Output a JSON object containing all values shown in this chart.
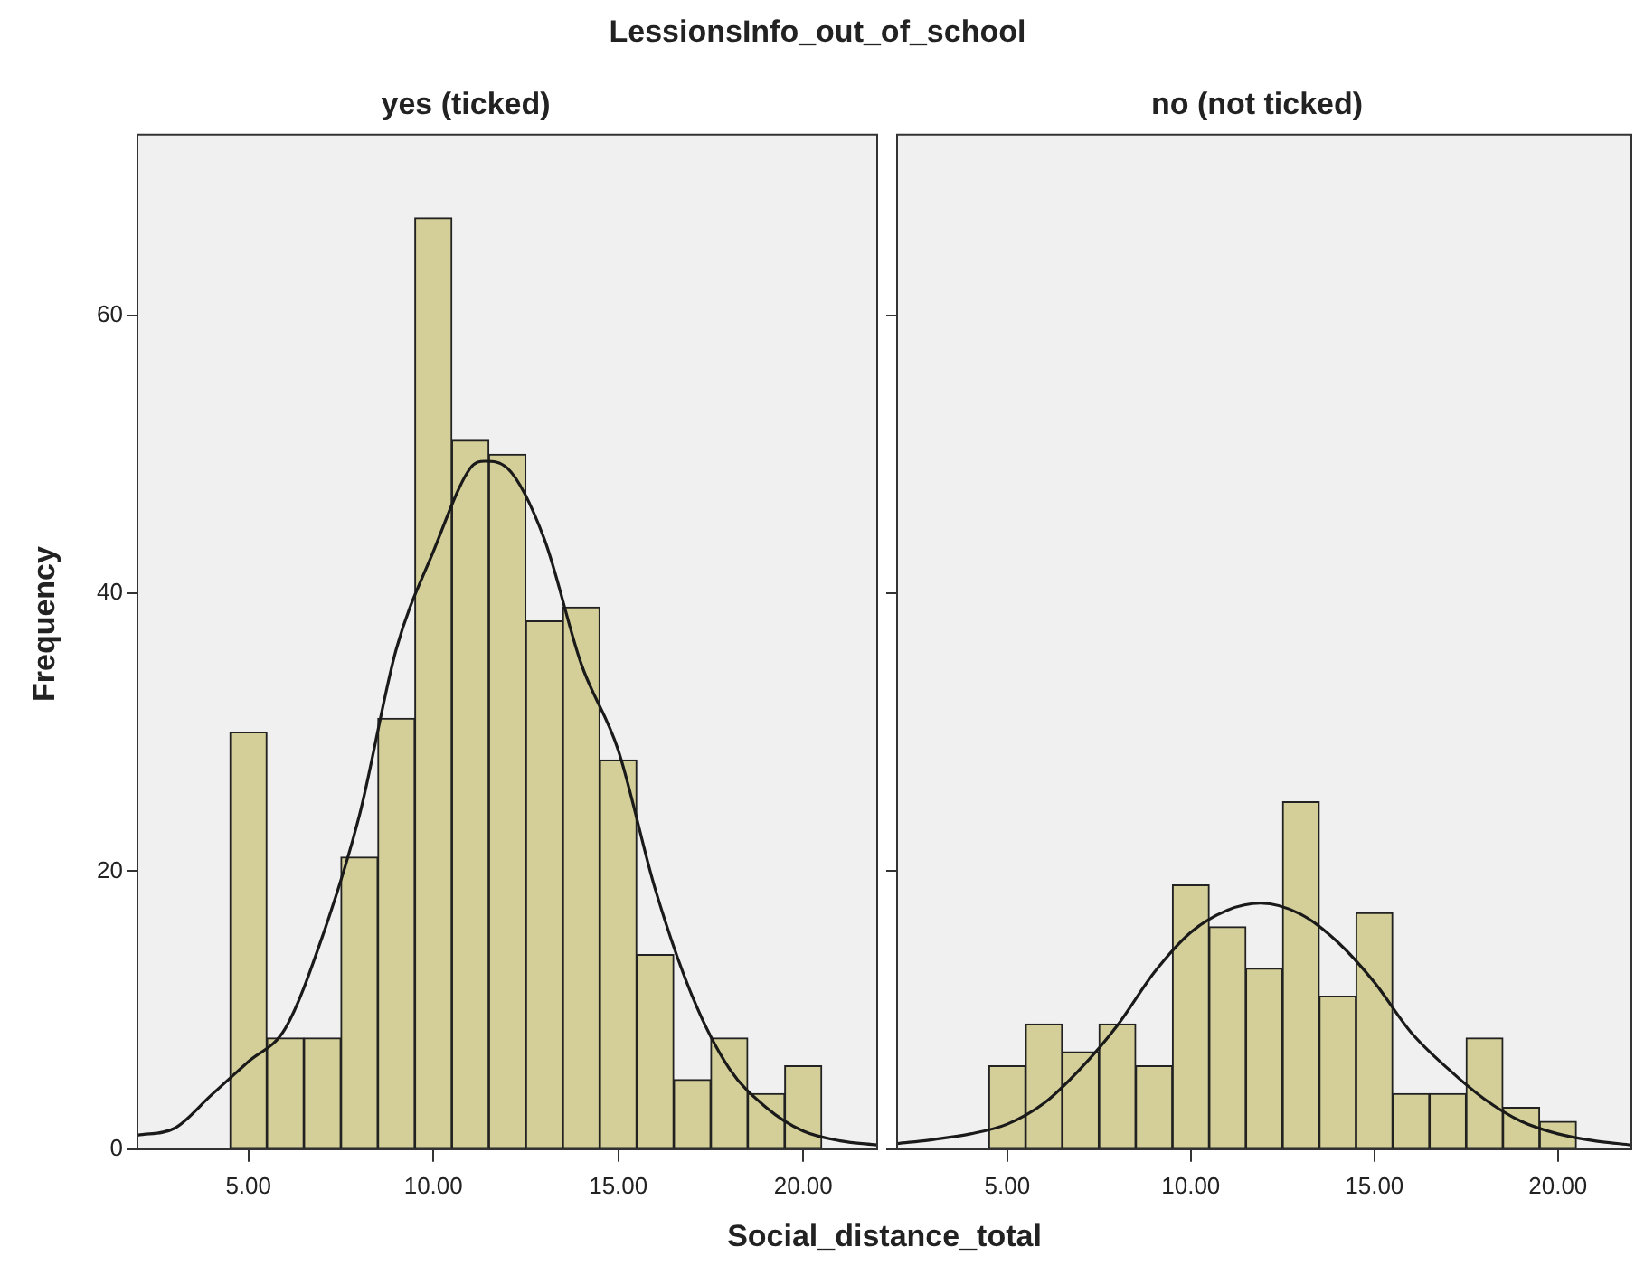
{
  "chart_data": [
    {
      "type": "histogram",
      "title": "LessionsInfo_out_of_school",
      "subtitle": "yes (ticked)",
      "xlabel": "Social_distance_total",
      "ylabel": "Frequency",
      "bins": [
        4.5,
        5.5,
        6.5,
        7.5,
        8.5,
        9.5,
        10.5,
        11.5,
        12.5,
        13.5,
        14.5,
        15.5,
        16.5,
        17.5,
        18.5,
        19.5,
        20.5
      ],
      "series": [
        {
          "color": "#d4cf98",
          "values": [
            30,
            8,
            8,
            21,
            31,
            67,
            51,
            50,
            38,
            39,
            28,
            14,
            5,
            8,
            4,
            6
          ]
        },
        {
          "type": "line",
          "color": "#1a1a1a",
          "x": [
            2,
            3,
            4,
            5,
            6,
            7,
            8,
            9,
            10,
            11,
            11.4,
            12,
            13,
            14,
            15,
            16,
            17,
            18,
            19,
            20,
            21,
            22
          ],
          "values": [
            1,
            1.5,
            3.9,
            6.3,
            8.7,
            15.3,
            24,
            36,
            43,
            49,
            49.5,
            49,
            43.9,
            34.9,
            28.7,
            18.7,
            11,
            5.8,
            3,
            1.3,
            0.6,
            0.3
          ]
        }
      ],
      "xlim": [
        2,
        22
      ],
      "ylim": [
        0,
        73
      ],
      "xticks": [
        {
          "value": 5,
          "label": "5.00"
        },
        {
          "value": 10,
          "label": "10.00"
        },
        {
          "value": 15,
          "label": "15.00"
        },
        {
          "value": 20,
          "label": "20.00"
        }
      ],
      "yticks": [
        0,
        20,
        40,
        60
      ],
      "grid": false,
      "legend": false,
      "marker": "none"
    },
    {
      "type": "histogram",
      "subtitle": "no (not ticked)",
      "bins": [
        4.5,
        5.5,
        6.5,
        7.5,
        8.5,
        9.5,
        10.5,
        11.5,
        12.5,
        13.5,
        14.5,
        15.5,
        16.5,
        17.5,
        18.5,
        19.5,
        20.5
      ],
      "series": [
        {
          "color": "#d4cf98",
          "values": [
            6,
            9,
            7,
            9,
            6,
            19,
            16,
            13,
            25,
            11,
            17,
            4,
            4,
            8,
            3,
            2
          ]
        },
        {
          "type": "line",
          "color": "#1a1a1a",
          "x": [
            2,
            3,
            4,
            5,
            6,
            7,
            8,
            9,
            10,
            11,
            11.9,
            13,
            14,
            15,
            16,
            17,
            18,
            19,
            20,
            21,
            22
          ],
          "values": [
            0.4,
            0.7,
            1.1,
            1.8,
            3.3,
            5.8,
            8.9,
            12.7,
            15.6,
            17.2,
            17.7,
            16.9,
            14.9,
            12,
            8.4,
            5.8,
            3.6,
            2,
            1.1,
            0.6,
            0.3
          ]
        }
      ],
      "xlim": [
        2,
        22
      ],
      "ylim": [
        0,
        73
      ],
      "xticks": [
        {
          "value": 5,
          "label": "5.00"
        },
        {
          "value": 10,
          "label": "10.00"
        },
        {
          "value": 15,
          "label": "15.00"
        },
        {
          "value": 20,
          "label": "20.00"
        }
      ],
      "yticks": [
        0,
        20,
        40,
        60
      ],
      "tick_labels": "x",
      "grid": false,
      "legend": false,
      "marker": "none"
    }
  ]
}
